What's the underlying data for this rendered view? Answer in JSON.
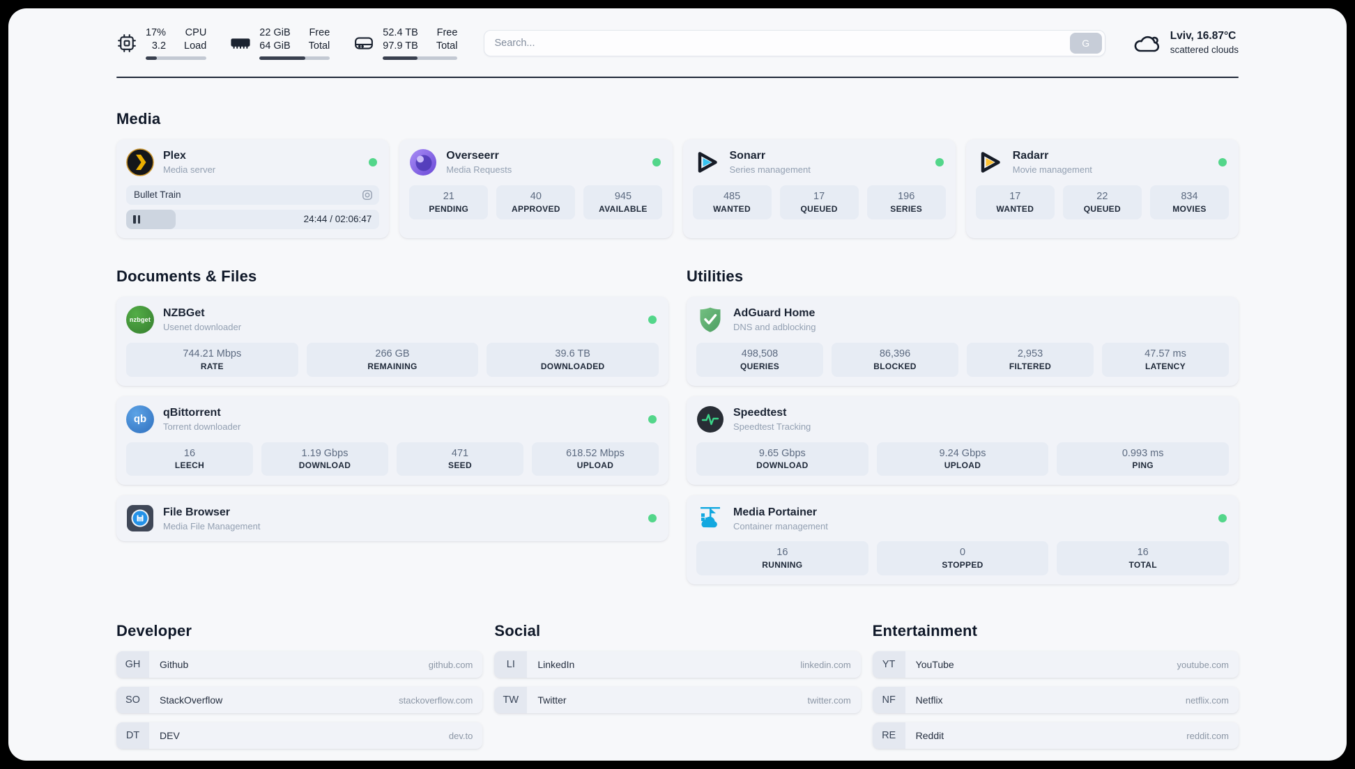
{
  "header": {
    "stats": [
      {
        "icon": "cpu-icon",
        "values": [
          "17%",
          "3.2"
        ],
        "labels": [
          "CPU",
          "Load"
        ],
        "progress_pct": 18
      },
      {
        "icon": "memory-icon",
        "values": [
          "22 GiB",
          "64 GiB"
        ],
        "labels": [
          "Free",
          "Total"
        ],
        "progress_pct": 65
      },
      {
        "icon": "disk-icon",
        "values": [
          "52.4 TB",
          "97.9 TB"
        ],
        "labels": [
          "Free",
          "Total"
        ],
        "progress_pct": 46
      }
    ],
    "search": {
      "placeholder": "Search...",
      "button_label": "G"
    },
    "weather": {
      "location": "Lviv, 16.87°C",
      "condition": "scattered clouds"
    }
  },
  "media": {
    "title": "Media",
    "plex": {
      "name": "Plex",
      "subtitle": "Media server",
      "now_playing": "Bullet Train",
      "time": "24:44 / 02:06:47",
      "progress_pct": 19.5
    },
    "overseerr": {
      "name": "Overseerr",
      "subtitle": "Media Requests",
      "stats": [
        {
          "value": "21",
          "label": "PENDING"
        },
        {
          "value": "40",
          "label": "APPROVED"
        },
        {
          "value": "945",
          "label": "AVAILABLE"
        }
      ]
    },
    "sonarr": {
      "name": "Sonarr",
      "subtitle": "Series management",
      "stats": [
        {
          "value": "485",
          "label": "WANTED"
        },
        {
          "value": "17",
          "label": "QUEUED"
        },
        {
          "value": "196",
          "label": "SERIES"
        }
      ]
    },
    "radarr": {
      "name": "Radarr",
      "subtitle": "Movie management",
      "stats": [
        {
          "value": "17",
          "label": "WANTED"
        },
        {
          "value": "22",
          "label": "QUEUED"
        },
        {
          "value": "834",
          "label": "MOVIES"
        }
      ]
    }
  },
  "documents": {
    "title": "Documents & Files",
    "nzbget": {
      "name": "NZBGet",
      "subtitle": "Usenet downloader",
      "icon_text": "nzbget",
      "stats": [
        {
          "value": "744.21 Mbps",
          "label": "RATE"
        },
        {
          "value": "266 GB",
          "label": "REMAINING"
        },
        {
          "value": "39.6 TB",
          "label": "DOWNLOADED"
        }
      ]
    },
    "qbittorrent": {
      "name": "qBittorrent",
      "subtitle": "Torrent downloader",
      "icon_text": "qb",
      "stats": [
        {
          "value": "16",
          "label": "LEECH"
        },
        {
          "value": "1.19 Gbps",
          "label": "DOWNLOAD"
        },
        {
          "value": "471",
          "label": "SEED"
        },
        {
          "value": "618.52 Mbps",
          "label": "UPLOAD"
        }
      ]
    },
    "filebrowser": {
      "name": "File Browser",
      "subtitle": "Media File Management"
    }
  },
  "utilities": {
    "title": "Utilities",
    "adguard": {
      "name": "AdGuard Home",
      "subtitle": "DNS and adblocking",
      "stats": [
        {
          "value": "498,508",
          "label": "QUERIES"
        },
        {
          "value": "86,396",
          "label": "BLOCKED"
        },
        {
          "value": "2,953",
          "label": "FILTERED"
        },
        {
          "value": "47.57 ms",
          "label": "LATENCY"
        }
      ]
    },
    "speedtest": {
      "name": "Speedtest",
      "subtitle": "Speedtest Tracking",
      "stats": [
        {
          "value": "9.65 Gbps",
          "label": "DOWNLOAD"
        },
        {
          "value": "9.24 Gbps",
          "label": "UPLOAD"
        },
        {
          "value": "0.993 ms",
          "label": "PING"
        }
      ]
    },
    "portainer": {
      "name": "Media Portainer",
      "subtitle": "Container management",
      "stats": [
        {
          "value": "16",
          "label": "RUNNING"
        },
        {
          "value": "0",
          "label": "STOPPED"
        },
        {
          "value": "16",
          "label": "TOTAL"
        }
      ]
    }
  },
  "bookmarks": [
    {
      "title": "Developer",
      "links": [
        {
          "abbr": "GH",
          "name": "Github",
          "url": "github.com"
        },
        {
          "abbr": "SO",
          "name": "StackOverflow",
          "url": "stackoverflow.com"
        },
        {
          "abbr": "DT",
          "name": "DEV",
          "url": "dev.to"
        }
      ]
    },
    {
      "title": "Social",
      "links": [
        {
          "abbr": "LI",
          "name": "LinkedIn",
          "url": "linkedin.com"
        },
        {
          "abbr": "TW",
          "name": "Twitter",
          "url": "twitter.com"
        }
      ]
    },
    {
      "title": "Entertainment",
      "links": [
        {
          "abbr": "YT",
          "name": "YouTube",
          "url": "youtube.com"
        },
        {
          "abbr": "NF",
          "name": "Netflix",
          "url": "netflix.com"
        },
        {
          "abbr": "RE",
          "name": "Reddit",
          "url": "reddit.com"
        }
      ]
    }
  ],
  "colors": {
    "status_online": "#53d68a",
    "panel_bg": "#f7f8fa",
    "card_bg": "#f1f3f8",
    "stat_bg": "#e7ecf4",
    "text_dark": "#1b2434",
    "text_muted": "#93a0b2"
  }
}
